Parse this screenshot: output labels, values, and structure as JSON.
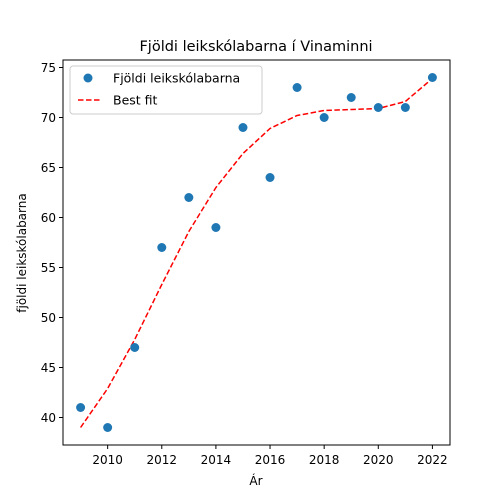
{
  "chart_data": {
    "type": "scatter",
    "title": "Fjöldi leikskólabarna í Vinaminni",
    "xlabel": "Ár",
    "ylabel": "fjöldi leikskólabarna",
    "xlim": [
      2008.35,
      2022.65
    ],
    "ylim": [
      37.25,
      75.75
    ],
    "xticks": [
      2010,
      2012,
      2014,
      2016,
      2018,
      2020,
      2022
    ],
    "yticks": [
      40,
      45,
      50,
      55,
      60,
      65,
      70,
      75
    ],
    "grid": false,
    "legend_position": "top-left",
    "series": [
      {
        "name": "Fjöldi leikskólabarna",
        "kind": "scatter",
        "color": "#1f77b4",
        "x": [
          2009,
          2010,
          2011,
          2012,
          2013,
          2014,
          2015,
          2016,
          2017,
          2018,
          2019,
          2020,
          2021,
          2022
        ],
        "y": [
          41,
          39,
          47,
          57,
          62,
          59,
          69,
          64,
          73,
          70,
          72,
          71,
          71,
          74
        ]
      },
      {
        "name": "Best fit",
        "kind": "line",
        "style": "dashed",
        "color": "#ff0000",
        "x": [
          2009,
          2010,
          2011,
          2012,
          2013,
          2014,
          2015,
          2016,
          2017,
          2018,
          2019,
          2020,
          2021,
          2022
        ],
        "y": [
          39.0,
          42.9,
          47.8,
          53.3,
          58.6,
          63.0,
          66.4,
          68.9,
          70.2,
          70.7,
          70.8,
          70.9,
          71.6,
          73.9
        ]
      }
    ]
  }
}
